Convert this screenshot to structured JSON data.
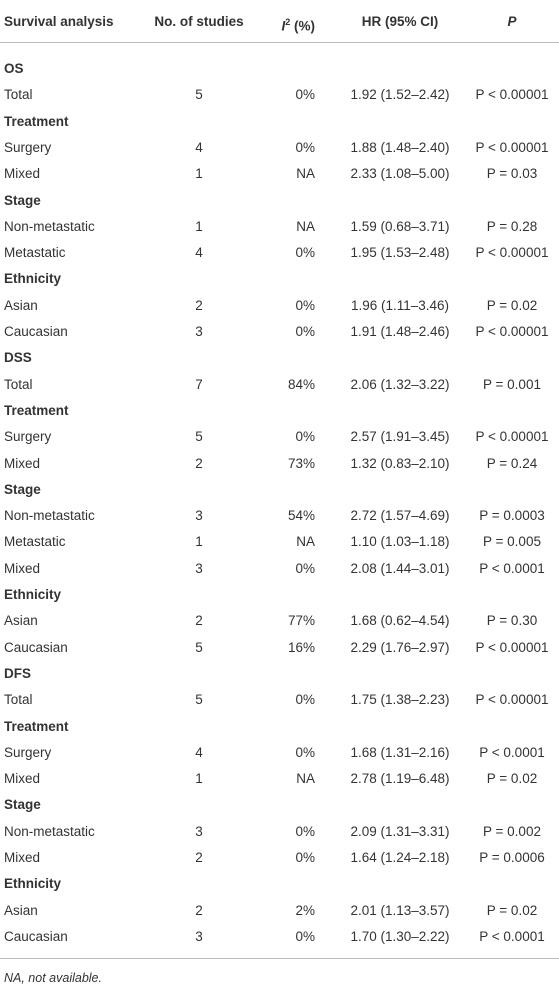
{
  "table": {
    "header": {
      "analysis": "Survival analysis",
      "studies": "No. of studies",
      "i2": {
        "symbol": "I",
        "sup": "2",
        "unit": "(%)"
      },
      "hr": "HR (95% CI)",
      "p": "P"
    },
    "rows": [
      [
        "OS"
      ],
      [
        "Total",
        5,
        "0%",
        "1.92 (1.52–2.42)",
        "P < 0.00001"
      ],
      [
        "Treatment"
      ],
      [
        "Surgery",
        4,
        "0%",
        "1.88 (1.48–2.40)",
        "P < 0.00001"
      ],
      [
        "Mixed",
        1,
        "NA",
        "2.33 (1.08–5.00)",
        "P = 0.03"
      ],
      [
        "Stage"
      ],
      [
        "Non-metastatic",
        1,
        "NA",
        "1.59 (0.68–3.71)",
        "P = 0.28"
      ],
      [
        "Metastatic",
        4,
        "0%",
        "1.95 (1.53–2.48)",
        "P < 0.00001"
      ],
      [
        "Ethnicity"
      ],
      [
        "Asian",
        2,
        "0%",
        "1.96 (1.11–3.46)",
        "P = 0.02"
      ],
      [
        "Caucasian",
        3,
        "0%",
        "1.91 (1.48–2.46)",
        "P < 0.00001"
      ],
      [
        "DSS"
      ],
      [
        "Total",
        7,
        "84%",
        "2.06 (1.32–3.22)",
        "P = 0.001"
      ],
      [
        "Treatment"
      ],
      [
        "Surgery",
        5,
        "0%",
        "2.57 (1.91–3.45)",
        "P < 0.00001"
      ],
      [
        "Mixed",
        2,
        "73%",
        "1.32 (0.83–2.10)",
        "P = 0.24"
      ],
      [
        "Stage"
      ],
      [
        "Non-metastatic",
        3,
        "54%",
        "2.72 (1.57–4.69)",
        "P = 0.0003"
      ],
      [
        "Metastatic",
        1,
        "NA",
        "1.10 (1.03–1.18)",
        "P = 0.005"
      ],
      [
        "Mixed",
        3,
        "0%",
        "2.08 (1.44–3.01)",
        "P < 0.0001"
      ],
      [
        "Ethnicity"
      ],
      [
        "Asian",
        2,
        "77%",
        "1.68 (0.62–4.54)",
        "P = 0.30"
      ],
      [
        "Caucasian",
        5,
        "16%",
        "2.29 (1.76–2.97)",
        "P < 0.00001"
      ],
      [
        "DFS"
      ],
      [
        "Total",
        5,
        "0%",
        "1.75 (1.38–2.23)",
        "P < 0.00001"
      ],
      [
        "Treatment"
      ],
      [
        "Surgery",
        4,
        "0%",
        "1.68 (1.31–2.16)",
        "P < 0.0001"
      ],
      [
        "Mixed",
        1,
        "NA",
        "2.78 (1.19–6.48)",
        "P = 0.02"
      ],
      [
        "Stage"
      ],
      [
        "Non-metastatic",
        3,
        "0%",
        "2.09 (1.31–3.31)",
        "P = 0.002"
      ],
      [
        "Mixed",
        2,
        "0%",
        "1.64 (1.24–2.18)",
        "P = 0.0006"
      ],
      [
        "Ethnicity"
      ],
      [
        "Asian",
        2,
        "2%",
        "2.01 (1.13–3.57)",
        "P = 0.02"
      ],
      [
        "Caucasian",
        3,
        "0%",
        "1.70 (1.30–2.22)",
        "P < 0.0001"
      ]
    ],
    "footnote": "NA, not available."
  }
}
